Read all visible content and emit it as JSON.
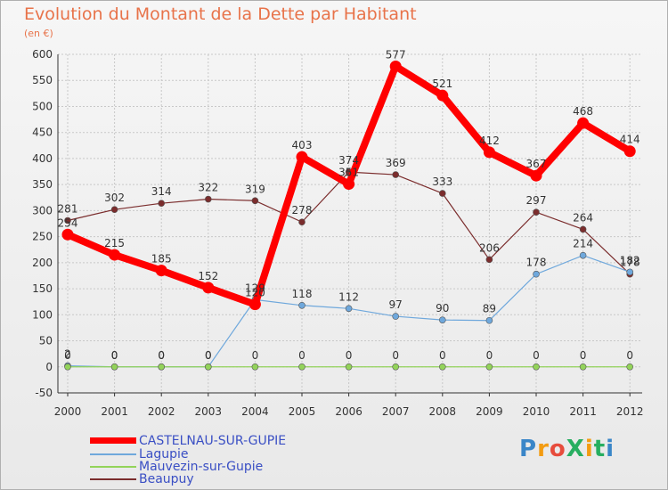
{
  "header": {
    "title": "Evolution du Montant de la Dette par Habitant",
    "subtitle": "(en €)"
  },
  "logo": {
    "text": "ProXiti",
    "colors": [
      "#3a86c8",
      "#f39c12",
      "#e74c3c",
      "#27ae60",
      "#f39c12",
      "#27ae60",
      "#3a86c8"
    ]
  },
  "chart_data": {
    "type": "line",
    "title": "Evolution du Montant de la Dette par Habitant",
    "subtitle": "(en €)",
    "x": [
      "2000",
      "2001",
      "2002",
      "2003",
      "2004",
      "2005",
      "2006",
      "2007",
      "2008",
      "2009",
      "2010",
      "2011",
      "2012"
    ],
    "ylim": [
      -50,
      600
    ],
    "yticks": [
      -50,
      0,
      50,
      100,
      150,
      200,
      250,
      300,
      350,
      400,
      450,
      500,
      550,
      600
    ],
    "grid": true,
    "legend_position": "bottom-left",
    "series": [
      {
        "name": "CASTELNAU-SUR-GUPIE",
        "color": "#ff0000",
        "values": [
          254,
          215,
          185,
          152,
          120,
          403,
          351,
          577,
          521,
          412,
          367,
          468,
          414
        ],
        "labels": [
          "254",
          "215",
          "185",
          "152",
          "120",
          "403",
          "351",
          "577",
          "521",
          "412",
          "367",
          "468",
          "414"
        ]
      },
      {
        "name": "Lagupie",
        "color": "#6fa8dc",
        "values": [
          2,
          0,
          0,
          0,
          129,
          118,
          112,
          97,
          90,
          89,
          178,
          214,
          182
        ],
        "labels": [
          "2",
          "0",
          "0",
          "0",
          "129",
          "118",
          "112",
          "97",
          "90",
          "89",
          "178",
          "214",
          "182"
        ]
      },
      {
        "name": "Mauvezin-sur-Gupie",
        "color": "#93d35a",
        "values": [
          0,
          0,
          0,
          0,
          0,
          0,
          0,
          0,
          0,
          0,
          0,
          0,
          0
        ],
        "labels": [
          "0",
          "0",
          "0",
          "0",
          "0",
          "0",
          "0",
          "0",
          "0",
          "0",
          "0",
          "0",
          "0"
        ]
      },
      {
        "name": "Beaupuy",
        "color": "#7b2d2d",
        "values": [
          281,
          302,
          314,
          322,
          319,
          278,
          374,
          369,
          333,
          206,
          297,
          264,
          178
        ],
        "labels": [
          "281",
          "302",
          "314",
          "322",
          "319",
          "278",
          "374",
          "369",
          "333",
          "206",
          "297",
          "264",
          "178"
        ]
      }
    ]
  }
}
